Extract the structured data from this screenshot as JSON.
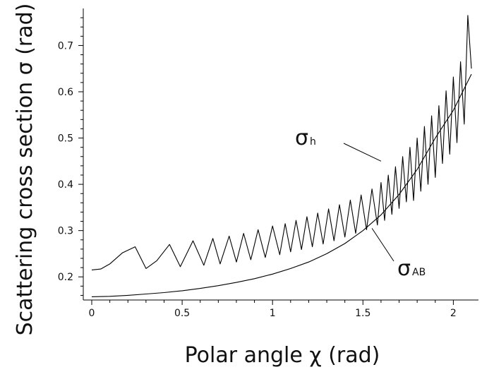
{
  "chart_data": {
    "type": "line",
    "title": "",
    "xlabel": "Polar angle χ (rad)",
    "ylabel": "Scattering cross section σ (rad)",
    "xlim": [
      0,
      2.1
    ],
    "ylim": [
      0.15,
      0.78
    ],
    "grid": false,
    "x_ticks": [
      0,
      0.5,
      1,
      1.5,
      2
    ],
    "x_tick_labels": [
      "0",
      "0.5",
      "1",
      "1.5",
      "2"
    ],
    "y_ticks": [
      0.2,
      0.3,
      0.4,
      0.5,
      0.6,
      0.7
    ],
    "y_tick_labels": [
      "0.2",
      "0.3",
      "0.4",
      "0.5",
      "0.6",
      "0.7"
    ],
    "series": [
      {
        "name": "σh",
        "color": "#000000",
        "x": [
          0.0,
          0.05,
          0.1,
          0.17,
          0.24,
          0.3,
          0.36,
          0.43,
          0.49,
          0.56,
          0.62,
          0.67,
          0.71,
          0.76,
          0.8,
          0.84,
          0.88,
          0.92,
          0.96,
          1.0,
          1.04,
          1.07,
          1.1,
          1.13,
          1.16,
          1.19,
          1.22,
          1.25,
          1.28,
          1.31,
          1.34,
          1.37,
          1.4,
          1.43,
          1.46,
          1.49,
          1.52,
          1.55,
          1.58,
          1.6,
          1.62,
          1.64,
          1.66,
          1.68,
          1.7,
          1.72,
          1.74,
          1.76,
          1.78,
          1.8,
          1.82,
          1.84,
          1.86,
          1.88,
          1.9,
          1.92,
          1.94,
          1.96,
          1.98,
          2.0,
          2.02,
          2.04,
          2.06,
          2.08,
          2.1
        ],
        "y": [
          0.215,
          0.217,
          0.228,
          0.252,
          0.265,
          0.218,
          0.235,
          0.27,
          0.222,
          0.278,
          0.225,
          0.283,
          0.228,
          0.288,
          0.232,
          0.294,
          0.237,
          0.302,
          0.242,
          0.31,
          0.248,
          0.315,
          0.254,
          0.322,
          0.259,
          0.33,
          0.265,
          0.338,
          0.271,
          0.347,
          0.278,
          0.356,
          0.286,
          0.366,
          0.294,
          0.377,
          0.302,
          0.39,
          0.312,
          0.404,
          0.322,
          0.42,
          0.335,
          0.438,
          0.348,
          0.46,
          0.362,
          0.48,
          0.365,
          0.5,
          0.385,
          0.525,
          0.4,
          0.548,
          0.415,
          0.57,
          0.445,
          0.602,
          0.465,
          0.632,
          0.49,
          0.665,
          0.53,
          0.765,
          0.65
        ]
      },
      {
        "name": "σAB",
        "color": "#000000",
        "x": [
          0.0,
          0.1,
          0.2,
          0.3,
          0.4,
          0.5,
          0.6,
          0.7,
          0.8,
          0.9,
          1.0,
          1.1,
          1.2,
          1.3,
          1.4,
          1.5,
          1.6,
          1.7,
          1.8,
          1.9,
          2.0,
          2.1
        ],
        "y": [
          0.157,
          0.158,
          0.16,
          0.163,
          0.166,
          0.17,
          0.175,
          0.181,
          0.188,
          0.196,
          0.206,
          0.218,
          0.232,
          0.25,
          0.272,
          0.3,
          0.334,
          0.378,
          0.432,
          0.5,
          0.56,
          0.638
        ]
      }
    ],
    "annotations": [
      {
        "name": "sigma-h",
        "main": "σ",
        "sub": "h",
        "target_x": 1.6,
        "target_y": 0.45
      },
      {
        "name": "sigma-ab",
        "main": "σ",
        "sub": "AB",
        "target_x": 1.55,
        "target_y": 0.305
      }
    ]
  }
}
